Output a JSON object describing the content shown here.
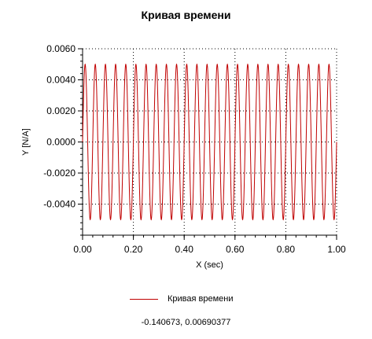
{
  "title": "Кривая времени",
  "coordinate_readout": "-0.140673, 0.00690377",
  "legend": {
    "label": "Кривая времени"
  },
  "chart_data": {
    "type": "line",
    "title": "Кривая времени",
    "xlabel": "X (sec)",
    "ylabel": "Y [N/A]",
    "xlim": [
      0.0,
      1.0
    ],
    "ylim": [
      -0.006,
      0.006
    ],
    "x_ticks": [
      "0.00",
      "0.20",
      "0.40",
      "0.60",
      "0.80",
      "1.00"
    ],
    "y_ticks": [
      "0.0060",
      "0.0040",
      "0.0020",
      "0.0000",
      "-0.0020",
      "-0.0040"
    ],
    "grid": true,
    "legend_position": "bottom",
    "series": [
      {
        "name": "Кривая времени",
        "color": "#c00000",
        "function": "sine",
        "amplitude": 0.005,
        "frequency_hz": 25,
        "x_start": 0.0,
        "x_end": 1.0
      }
    ]
  }
}
